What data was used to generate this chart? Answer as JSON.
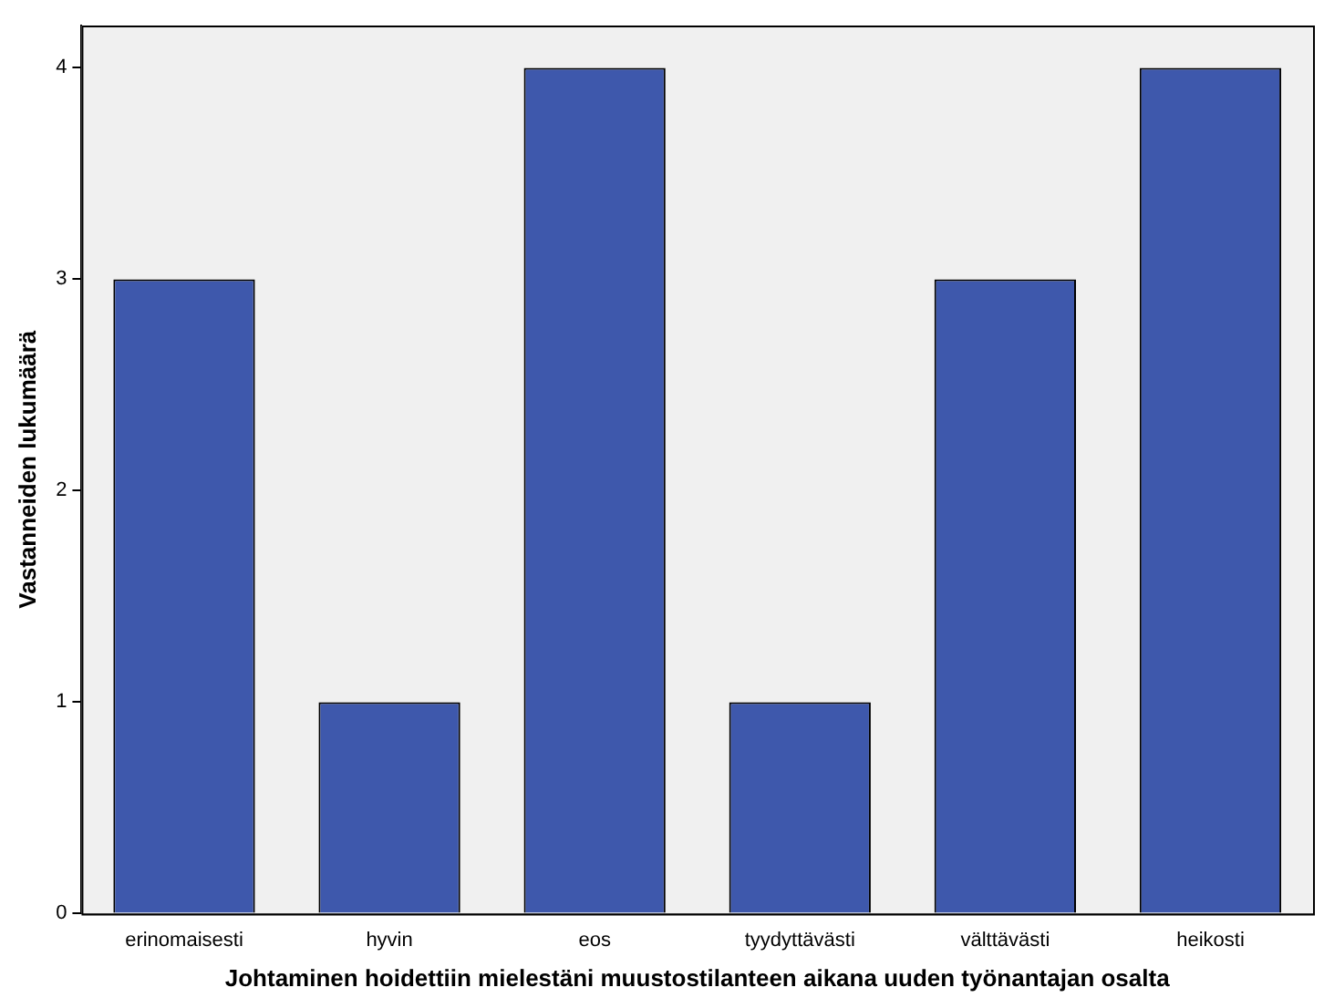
{
  "chart_data": {
    "type": "bar",
    "xlabel": "Johtaminen hoidettiin mielestäni muustostilanteen aikana uuden työnantajan osalta",
    "ylabel": "Vastanneiden lukumäärä",
    "categories": [
      "erinomaisesti",
      "hyvin",
      "eos",
      "tyydyttävästi",
      "välttävästi",
      "heikosti"
    ],
    "values": [
      3,
      1,
      4,
      1,
      3,
      4
    ],
    "color": "#3e58ac",
    "ylim": [
      0,
      4.2
    ],
    "yticks": [
      0,
      1,
      2,
      3,
      4
    ],
    "grid": false,
    "legend": false
  }
}
